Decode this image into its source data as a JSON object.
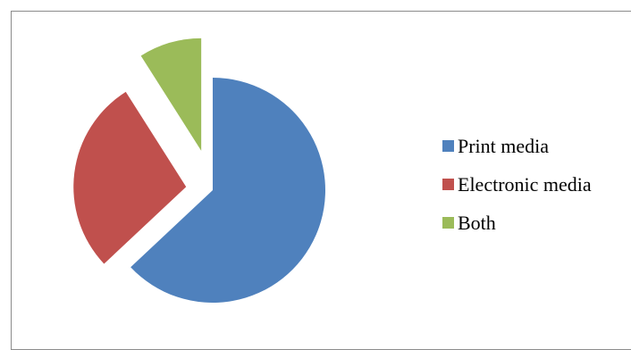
{
  "chart_data": {
    "type": "pie",
    "title": "",
    "exploded": true,
    "legend_position": "right",
    "series": [
      {
        "values": [
          63,
          28,
          9
        ],
        "categories": [
          "Print media",
          "Electronic media",
          "Both"
        ],
        "colors": [
          "#4f81bd",
          "#c0504d",
          "#9bbb59"
        ]
      }
    ],
    "legend": {
      "items": [
        {
          "label": "Print media",
          "color": "#4f81bd"
        },
        {
          "label": "Electronic media",
          "color": "#c0504d"
        },
        {
          "label": "Both",
          "color": "#9bbb59"
        }
      ]
    }
  }
}
